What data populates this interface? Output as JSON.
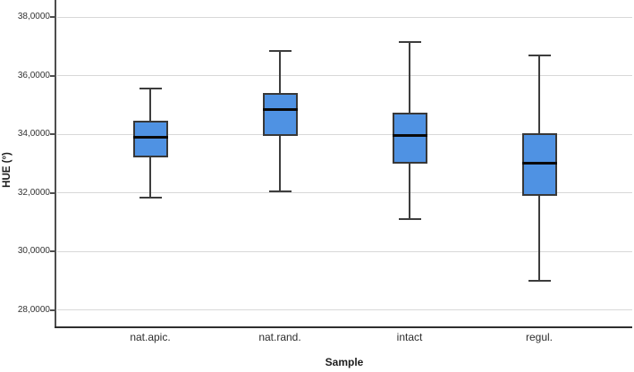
{
  "chart_data": {
    "type": "boxplot",
    "title": "",
    "xlabel": "Sample",
    "ylabel": "HUE (°)",
    "ylim": [
      27.45,
      38.58
    ],
    "grid": "horizontal",
    "yticks": [
      {
        "value": 38,
        "label": "38,0000"
      },
      {
        "value": 36,
        "label": "36,0000"
      },
      {
        "value": 34,
        "label": "34,0000"
      },
      {
        "value": 32,
        "label": "32,0000"
      },
      {
        "value": 30,
        "label": "30,0000"
      },
      {
        "value": 28,
        "label": "28,0000"
      }
    ],
    "categories": [
      "nat.apic.",
      "nat.rand.",
      "intact",
      "regul."
    ],
    "series": [
      {
        "name": "nat.apic.",
        "whisker_low": 31.85,
        "q1": 33.2,
        "median": 33.9,
        "q3": 34.45,
        "whisker_high": 35.55
      },
      {
        "name": "nat.rand.",
        "whisker_low": 32.05,
        "q1": 33.95,
        "median": 34.85,
        "q3": 35.4,
        "whisker_high": 36.85
      },
      {
        "name": "intact",
        "whisker_low": 31.1,
        "q1": 33.0,
        "median": 33.95,
        "q3": 34.75,
        "whisker_high": 37.15
      },
      {
        "name": "regul.",
        "whisker_low": 29.0,
        "q1": 31.9,
        "median": 33.0,
        "q3": 34.05,
        "whisker_high": 36.7
      }
    ],
    "colors": {
      "box_fill": "#4f92e3",
      "box_border": "#383838",
      "median": "#0a0a0a",
      "whisker": "#3d3d3d",
      "grid": "#d8d8d8",
      "y_axis": "#4e4e4e",
      "x_axis": "#2e2e2e",
      "background": "#ffffff"
    }
  }
}
